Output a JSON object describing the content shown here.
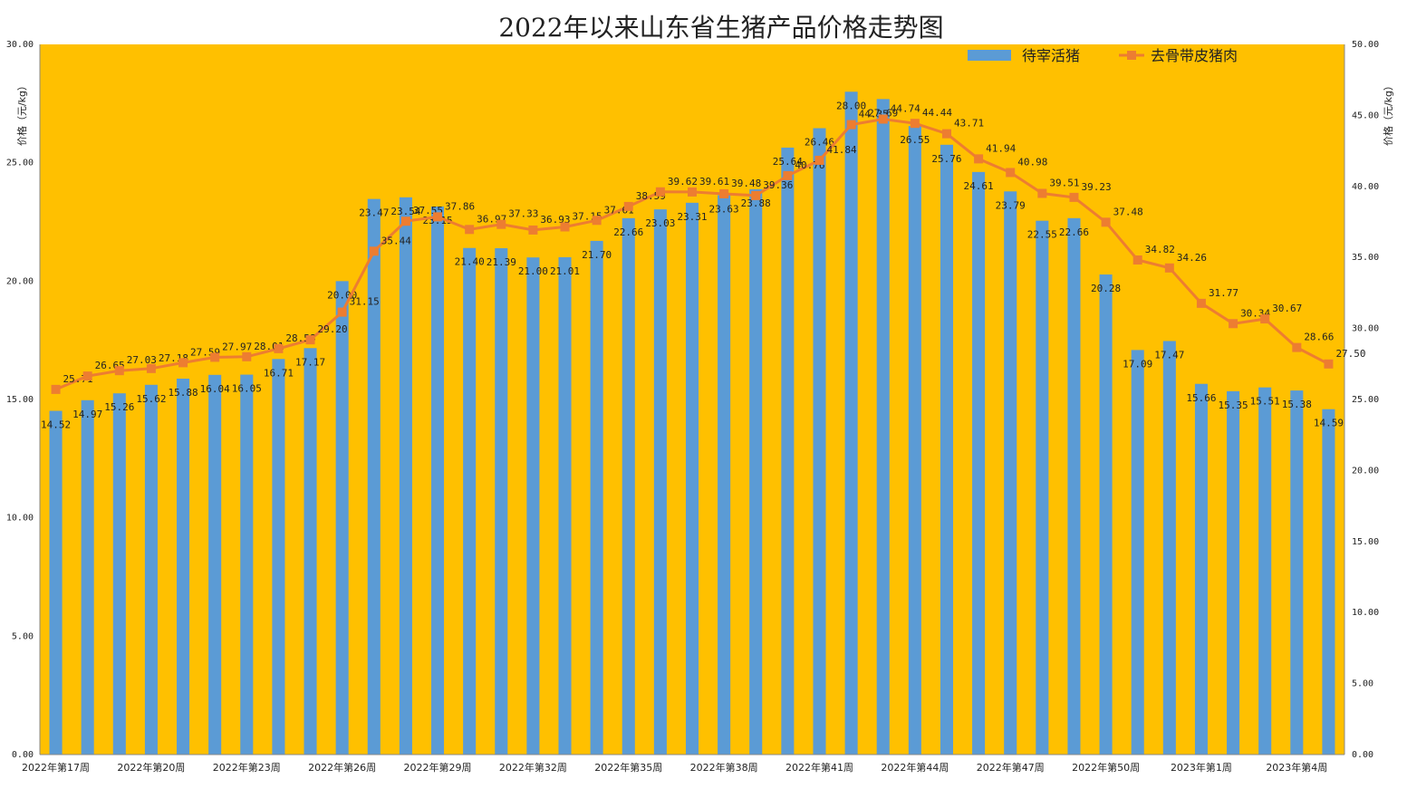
{
  "chart_data": {
    "type": "bar",
    "title": "2022年以来山东省生猪产品价格走势图",
    "ylabel": "价格（元/kg）",
    "y2label": "价格（元/kg）",
    "ylim": [
      0,
      30
    ],
    "y2lim": [
      0,
      50
    ],
    "yticks": [
      "0.00",
      "5.00",
      "10.00",
      "15.00",
      "20.00",
      "25.00",
      "30.00"
    ],
    "y2ticks": [
      "0.00",
      "5.00",
      "10.00",
      "15.00",
      "20.00",
      "25.00",
      "30.00",
      "35.00",
      "40.00",
      "45.00",
      "50.00"
    ],
    "legend_position": "top-right",
    "grid": false,
    "categories": [
      "2022年第17周",
      "2022年第18周",
      "2022年第19周",
      "2022年第20周",
      "2022年第21周",
      "2022年第22周",
      "2022年第23周",
      "2022年第24周",
      "2022年第25周",
      "2022年第26周",
      "2022年第27周",
      "2022年第28周",
      "2022年第29周",
      "2022年第30周",
      "2022年第31周",
      "2022年第32周",
      "2022年第33周",
      "2022年第34周",
      "2022年第35周",
      "2022年第36周",
      "2022年第37周",
      "2022年第38周",
      "2022年第39周",
      "2022年第40周",
      "2022年第41周",
      "2022年第42周",
      "2022年第43周",
      "2022年第44周",
      "2022年第45周",
      "2022年第46周",
      "2022年第47周",
      "2022年第48周",
      "2022年第49周",
      "2022年第50周",
      "2022年第51周",
      "2022年第52周",
      "2023年第1周",
      "2023年第2周",
      "2023年第3周",
      "2023年第4周",
      "2023年第5周"
    ],
    "visible_category_labels": [
      "2022年第17周",
      "2022年第20周",
      "2022年第23周",
      "2022年第26周",
      "2022年第29周",
      "2022年第32周",
      "2022年第35周",
      "2022年第38周",
      "2022年第41周",
      "2022年第44周",
      "2022年第47周",
      "2022年第50周",
      "2023年第1周",
      "2023年第4周"
    ],
    "series": [
      {
        "name": "待宰活猪",
        "type": "bar",
        "axis": "left",
        "color": "#5B9BD5",
        "values": [
          14.52,
          14.97,
          15.26,
          15.62,
          15.88,
          16.04,
          16.05,
          16.71,
          17.17,
          20.0,
          23.47,
          23.54,
          23.15,
          21.4,
          21.39,
          21.0,
          21.01,
          21.7,
          22.66,
          23.03,
          23.31,
          23.63,
          23.88,
          25.64,
          26.46,
          28.0,
          27.69,
          26.55,
          25.76,
          24.61,
          23.79,
          22.55,
          22.66,
          20.28,
          17.09,
          17.47,
          15.66,
          15.35,
          15.51,
          15.38,
          14.59
        ]
      },
      {
        "name": "去骨带皮猪肉",
        "type": "line",
        "axis": "right",
        "color": "#ED7D31",
        "values": [
          25.71,
          26.65,
          27.03,
          27.18,
          27.59,
          27.97,
          28.01,
          28.58,
          29.2,
          31.15,
          35.44,
          37.55,
          37.86,
          36.97,
          37.33,
          36.93,
          37.15,
          37.61,
          38.59,
          39.62,
          39.61,
          39.48,
          39.36,
          40.76,
          41.84,
          44.35,
          44.74,
          44.44,
          43.71,
          41.94,
          40.98,
          39.51,
          39.23,
          37.48,
          34.82,
          34.26,
          31.77,
          30.34,
          30.67,
          28.66,
          27.5
        ]
      }
    ]
  },
  "colors": {
    "plot_background": "#FFC000",
    "bar": "#5B9BD5",
    "line": "#ED7D31"
  }
}
